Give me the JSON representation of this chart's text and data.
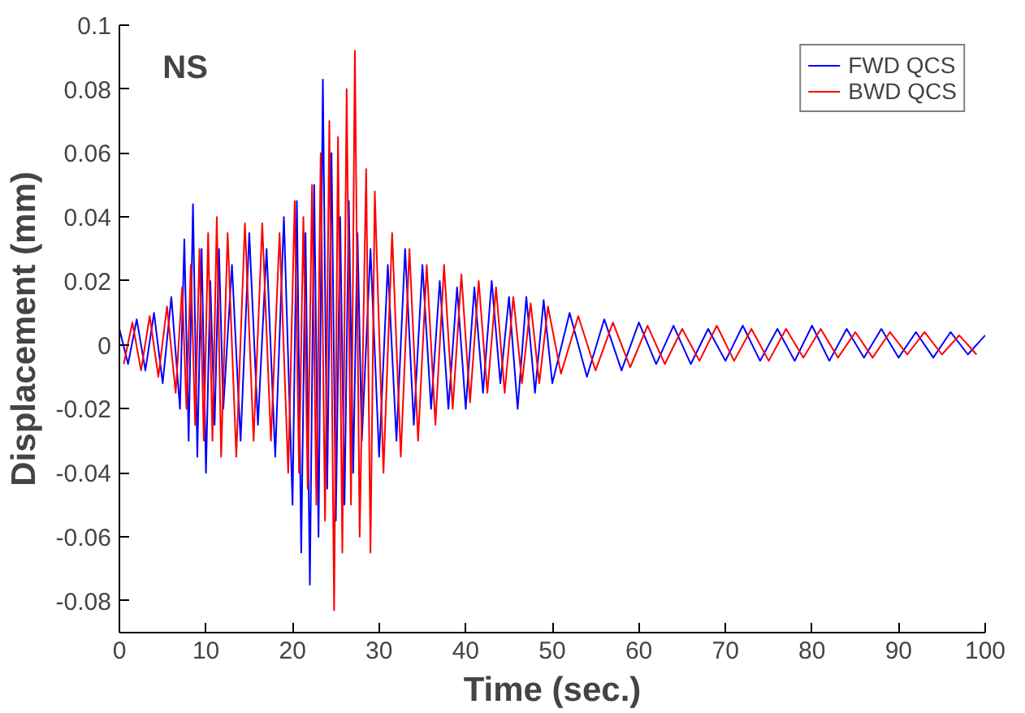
{
  "chart_data": {
    "type": "line",
    "title": "NS",
    "xlabel": "Time (sec.)",
    "ylabel": "Displacement (mm)",
    "xlim": [
      0,
      100
    ],
    "xticks": [
      0,
      10,
      20,
      30,
      40,
      50,
      60,
      70,
      80,
      90,
      100
    ],
    "ylim": [
      -0.09,
      0.1
    ],
    "yticks": [
      -0.08,
      -0.06,
      -0.04,
      -0.02,
      0,
      0.02,
      0.04,
      0.06,
      0.08,
      0.1
    ],
    "grid": false,
    "legend": "top right",
    "marker": "none",
    "line_style": "solid",
    "series": [
      {
        "name": "FWD QCS",
        "color": "#0000ff",
        "x": [
          0,
          1,
          2,
          3,
          4,
          5,
          6,
          7,
          7.5,
          8,
          8.5,
          9,
          9.5,
          10,
          10.5,
          11,
          11.5,
          12,
          13,
          14,
          15,
          16,
          17,
          18,
          19,
          20,
          20.5,
          21,
          21.5,
          22,
          22.5,
          23,
          23.5,
          24,
          24.5,
          25,
          25.5,
          26,
          26.5,
          27,
          27.5,
          28,
          29,
          30,
          31,
          32,
          33,
          34,
          35,
          36,
          37,
          38,
          39,
          40,
          41,
          42,
          43,
          44,
          45,
          46,
          47,
          48,
          49,
          50,
          52,
          54,
          56,
          58,
          60,
          62,
          64,
          66,
          68,
          70,
          72,
          74,
          76,
          78,
          80,
          82,
          84,
          86,
          88,
          90,
          92,
          94,
          96,
          98,
          100
        ],
        "values": [
          0.005,
          -0.006,
          0.008,
          -0.008,
          0.01,
          -0.012,
          0.015,
          -0.02,
          0.033,
          -0.03,
          0.044,
          -0.035,
          0.03,
          -0.04,
          0.02,
          -0.025,
          0.03,
          -0.02,
          0.025,
          -0.03,
          0.035,
          -0.025,
          0.03,
          -0.035,
          0.04,
          -0.05,
          0.045,
          -0.065,
          0.035,
          -0.075,
          0.05,
          -0.06,
          0.083,
          -0.045,
          0.06,
          -0.055,
          0.04,
          -0.05,
          0.045,
          -0.04,
          0.035,
          -0.03,
          0.03,
          -0.035,
          0.025,
          -0.03,
          0.03,
          -0.025,
          0.025,
          -0.02,
          0.02,
          -0.02,
          0.018,
          -0.02,
          0.018,
          -0.015,
          0.02,
          -0.012,
          0.015,
          -0.02,
          0.015,
          -0.015,
          0.014,
          -0.012,
          0.01,
          -0.01,
          0.008,
          -0.008,
          0.007,
          -0.006,
          0.006,
          -0.006,
          0.005,
          -0.005,
          0.006,
          -0.005,
          0.005,
          -0.005,
          0.006,
          -0.005,
          0.005,
          -0.004,
          0.005,
          -0.004,
          0.004,
          -0.004,
          0.004,
          -0.003,
          0.003
        ]
      },
      {
        "name": "BWD QCS",
        "color": "#ff0000",
        "x": [
          0.5,
          1.5,
          2.5,
          3.5,
          4.5,
          5.5,
          6.5,
          7.25,
          7.75,
          8.25,
          8.75,
          9.25,
          9.75,
          10.25,
          10.75,
          11.25,
          11.75,
          12.5,
          13.5,
          14.5,
          15.5,
          16.5,
          17.5,
          18.5,
          19.5,
          20.25,
          20.75,
          21.25,
          21.75,
          22.25,
          22.75,
          23.25,
          23.75,
          24.25,
          24.8,
          25.25,
          25.75,
          26.25,
          26.75,
          27.2,
          27.75,
          28.5,
          29,
          29.5,
          30.5,
          31.5,
          32.5,
          33.5,
          34.5,
          35.5,
          36.5,
          37.5,
          38.5,
          39.5,
          40.5,
          41.5,
          42.5,
          43.5,
          44.5,
          45.5,
          46.5,
          47.5,
          48.5,
          49.5,
          51,
          53,
          55,
          57,
          59,
          61,
          63,
          65,
          67,
          69,
          71,
          73,
          75,
          77,
          79,
          81,
          83,
          85,
          87,
          89,
          91,
          93,
          95,
          97,
          99
        ],
        "values": [
          -0.006,
          0.007,
          -0.008,
          0.009,
          -0.01,
          0.012,
          -0.015,
          0.018,
          -0.02,
          0.025,
          -0.025,
          0.03,
          -0.03,
          0.035,
          -0.03,
          0.04,
          -0.035,
          0.035,
          -0.035,
          0.038,
          -0.03,
          0.038,
          -0.03,
          0.035,
          -0.04,
          0.045,
          -0.04,
          0.04,
          -0.045,
          0.05,
          -0.05,
          0.06,
          -0.055,
          0.07,
          -0.083,
          0.065,
          -0.065,
          0.08,
          -0.05,
          0.092,
          -0.06,
          0.055,
          -0.065,
          0.048,
          -0.04,
          0.035,
          -0.035,
          0.03,
          -0.03,
          0.025,
          -0.025,
          0.025,
          -0.02,
          0.022,
          -0.018,
          0.02,
          -0.015,
          0.018,
          -0.015,
          0.015,
          -0.012,
          0.013,
          -0.012,
          0.012,
          -0.009,
          0.009,
          -0.008,
          0.007,
          -0.007,
          0.006,
          -0.006,
          0.005,
          -0.005,
          0.006,
          -0.005,
          0.005,
          -0.005,
          0.005,
          -0.004,
          0.005,
          -0.004,
          0.004,
          -0.004,
          0.004,
          -0.003,
          0.004,
          -0.003,
          0.003,
          -0.003
        ]
      }
    ]
  }
}
